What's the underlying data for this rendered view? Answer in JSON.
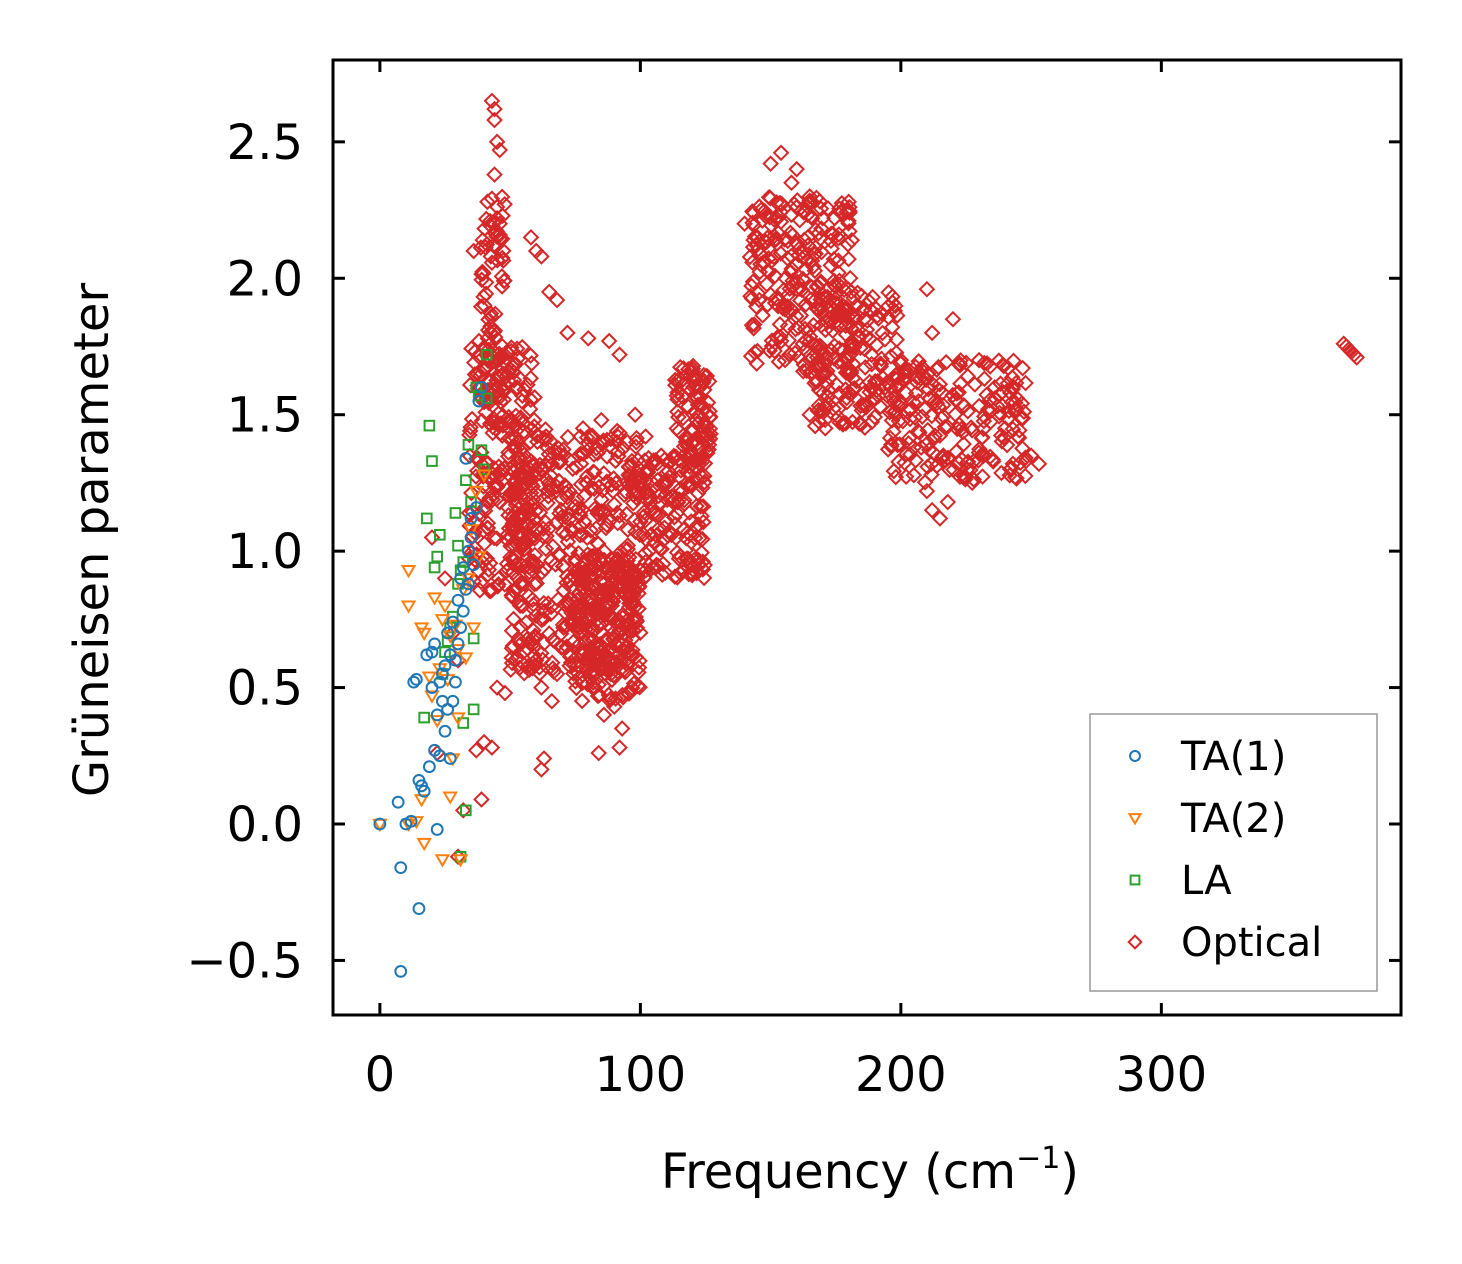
{
  "chart_data": {
    "type": "scatter",
    "title": "",
    "xlabel": "Frequency (cm",
    "xlabel_sup": "−1",
    "xlabel_tail": ")",
    "ylabel": "Grüneisen parameter",
    "xlim": [
      -18,
      392
    ],
    "ylim": [
      -0.7,
      2.8
    ],
    "xticks": [
      0,
      100,
      200,
      300
    ],
    "xtick_labels": [
      "0",
      "100",
      "200",
      "300"
    ],
    "yticks": [
      -0.5,
      0.0,
      0.5,
      1.0,
      1.5,
      2.0,
      2.5
    ],
    "ytick_labels": [
      "−0.5",
      "0.0",
      "0.5",
      "1.0",
      "1.5",
      "2.0",
      "2.5"
    ],
    "legend_position": "lower-right",
    "series": [
      {
        "name": "TA(1)",
        "marker": "circle",
        "color": "#1f77b4",
        "points": [
          [
            0,
            0.0
          ],
          [
            7,
            0.08
          ],
          [
            8,
            -0.16
          ],
          [
            8,
            -0.54
          ],
          [
            10,
            0.0
          ],
          [
            12,
            0.01
          ],
          [
            13,
            0.52
          ],
          [
            14,
            0.53
          ],
          [
            15,
            0.16
          ],
          [
            15,
            -0.31
          ],
          [
            16,
            0.14
          ],
          [
            17,
            0.12
          ],
          [
            18,
            0.62
          ],
          [
            19,
            0.21
          ],
          [
            20,
            0.63
          ],
          [
            20,
            0.5
          ],
          [
            21,
            0.27
          ],
          [
            21,
            0.66
          ],
          [
            22,
            0.4
          ],
          [
            22,
            -0.02
          ],
          [
            23,
            0.25
          ],
          [
            23,
            0.52
          ],
          [
            24,
            0.45
          ],
          [
            24,
            0.55
          ],
          [
            25,
            0.58
          ],
          [
            25,
            0.34
          ],
          [
            26,
            0.7
          ],
          [
            26,
            0.42
          ],
          [
            27,
            0.62
          ],
          [
            27,
            0.24
          ],
          [
            28,
            0.74
          ],
          [
            28,
            0.45
          ],
          [
            29,
            0.6
          ],
          [
            29,
            0.52
          ],
          [
            30,
            0.82
          ],
          [
            30,
            0.66
          ],
          [
            31,
            0.72
          ],
          [
            31,
            0.9
          ],
          [
            32,
            0.94
          ],
          [
            32,
            0.78
          ],
          [
            33,
            1.34
          ],
          [
            33,
            0.86
          ],
          [
            34,
            1.0
          ],
          [
            34,
            0.88
          ],
          [
            35,
            1.05
          ],
          [
            35,
            1.12
          ],
          [
            36,
            0.95
          ],
          [
            37,
            1.16
          ],
          [
            38,
            1.55
          ],
          [
            39,
            1.6
          ]
        ]
      },
      {
        "name": "TA(2)",
        "marker": "triangle-down",
        "color": "#ff7f0e",
        "points": [
          [
            0,
            0.0
          ],
          [
            11,
            0.0
          ],
          [
            11,
            0.93
          ],
          [
            11,
            0.8
          ],
          [
            14,
            0.01
          ],
          [
            16,
            0.09
          ],
          [
            16,
            0.72
          ],
          [
            17,
            0.7
          ],
          [
            17,
            -0.07
          ],
          [
            19,
            0.54
          ],
          [
            20,
            0.47
          ],
          [
            21,
            0.83
          ],
          [
            22,
            0.38
          ],
          [
            23,
            0.57
          ],
          [
            24,
            0.75
          ],
          [
            24,
            -0.13
          ],
          [
            25,
            0.8
          ],
          [
            26,
            0.53
          ],
          [
            27,
            0.1
          ],
          [
            27,
            0.69
          ],
          [
            28,
            0.24
          ],
          [
            29,
            0.73
          ],
          [
            30,
            0.64
          ],
          [
            30,
            0.39
          ],
          [
            31,
            -0.13
          ],
          [
            32,
            0.86
          ],
          [
            33,
            0.61
          ],
          [
            34,
            0.9
          ],
          [
            35,
            1.08
          ],
          [
            36,
            0.72
          ],
          [
            37,
            1.22
          ],
          [
            38,
            0.98
          ],
          [
            40,
            1.28
          ]
        ]
      },
      {
        "name": "LA",
        "marker": "square",
        "color": "#2ca02c",
        "points": [
          [
            17,
            0.39
          ],
          [
            18,
            1.12
          ],
          [
            19,
            1.46
          ],
          [
            20,
            1.33
          ],
          [
            21,
            0.94
          ],
          [
            22,
            0.98
          ],
          [
            23,
            1.06
          ],
          [
            24,
            0.55
          ],
          [
            25,
            0.63
          ],
          [
            26,
            0.67
          ],
          [
            27,
            0.72
          ],
          [
            28,
            0.76
          ],
          [
            29,
            1.14
          ],
          [
            30,
            0.88
          ],
          [
            30,
            1.02
          ],
          [
            31,
            0.93
          ],
          [
            31,
            -0.12
          ],
          [
            32,
            0.37
          ],
          [
            32,
            0.96
          ],
          [
            33,
            0.05
          ],
          [
            33,
            1.26
          ],
          [
            34,
            1.39
          ],
          [
            35,
            1.18
          ],
          [
            36,
            0.68
          ],
          [
            36,
            0.42
          ],
          [
            37,
            1.6
          ],
          [
            38,
            1.57
          ],
          [
            39,
            1.37
          ],
          [
            40,
            1.3
          ],
          [
            41,
            1.72
          ],
          [
            41,
            1.56
          ]
        ]
      },
      {
        "name": "Optical",
        "marker": "diamond",
        "color": "#d62728",
        "clusters": [
          {
            "x_range": [
              34,
              60
            ],
            "y_range": [
              0.85,
              1.75
            ],
            "count": 240
          },
          {
            "x_range": [
              38,
              48
            ],
            "y_range": [
              1.45,
              2.3
            ],
            "count": 90
          },
          {
            "x_range": [
              50,
              100
            ],
            "y_range": [
              0.55,
              1.45
            ],
            "count": 500
          },
          {
            "x_range": [
              75,
              100
            ],
            "y_range": [
              0.45,
              1.0
            ],
            "count": 180
          },
          {
            "x_range": [
              100,
              125
            ],
            "y_range": [
              0.9,
              1.35
            ],
            "count": 170
          },
          {
            "x_range": [
              113,
              127
            ],
            "y_range": [
              1.3,
              1.68
            ],
            "count": 90
          },
          {
            "x_range": [
              142,
              182
            ],
            "y_range": [
              1.65,
              2.3
            ],
            "count": 260
          },
          {
            "x_range": [
              165,
              200
            ],
            "y_range": [
              1.45,
              1.95
            ],
            "count": 170
          },
          {
            "x_range": [
              195,
              248
            ],
            "y_range": [
              1.25,
              1.7
            ],
            "count": 210
          }
        ],
        "points": [
          [
            43,
            2.65
          ],
          [
            44,
            2.62
          ],
          [
            44,
            2.58
          ],
          [
            45,
            2.5
          ],
          [
            46,
            2.47
          ],
          [
            44,
            2.38
          ],
          [
            45,
            2.22
          ],
          [
            46,
            2.2
          ],
          [
            36,
            2.1
          ],
          [
            58,
            2.15
          ],
          [
            60,
            2.1
          ],
          [
            62,
            2.08
          ],
          [
            65,
            1.95
          ],
          [
            68,
            1.92
          ],
          [
            72,
            1.8
          ],
          [
            80,
            1.78
          ],
          [
            88,
            1.77
          ],
          [
            92,
            1.72
          ],
          [
            78,
            1.45
          ],
          [
            85,
            1.48
          ],
          [
            95,
            1.4
          ],
          [
            98,
            1.5
          ],
          [
            102,
            1.42
          ],
          [
            108,
            1.35
          ],
          [
            112,
            1.2
          ],
          [
            45,
            0.5
          ],
          [
            48,
            0.48
          ],
          [
            43,
            0.28
          ],
          [
            37,
            0.27
          ],
          [
            40,
            0.3
          ],
          [
            39,
            0.09
          ],
          [
            32,
            0.05
          ],
          [
            63,
            0.24
          ],
          [
            62,
            0.2
          ],
          [
            62,
            0.5
          ],
          [
            66,
            0.45
          ],
          [
            68,
            0.55
          ],
          [
            84,
            0.26
          ],
          [
            92,
            0.28
          ],
          [
            93,
            0.35
          ],
          [
            86,
            0.4
          ],
          [
            90,
            0.43
          ],
          [
            95,
            0.48
          ],
          [
            60,
            0.6
          ],
          [
            70,
            0.65
          ],
          [
            30,
            0.6
          ],
          [
            20,
            1.05
          ],
          [
            25,
            0.9
          ],
          [
            28,
            0.7
          ],
          [
            22,
            0.26
          ],
          [
            30,
            -0.12
          ],
          [
            154,
            2.46
          ],
          [
            150,
            2.42
          ],
          [
            160,
            2.4
          ],
          [
            165,
            2.3
          ],
          [
            170,
            2.22
          ],
          [
            158,
            2.35
          ],
          [
            140,
            2.2
          ],
          [
            145,
            2.15
          ],
          [
            168,
            1.75
          ],
          [
            170,
            1.65
          ],
          [
            165,
            1.5
          ],
          [
            171,
            1.45
          ],
          [
            178,
            1.47
          ],
          [
            188,
            1.62
          ],
          [
            186,
            1.58
          ],
          [
            205,
            1.38
          ],
          [
            210,
            1.22
          ],
          [
            212,
            1.15
          ],
          [
            215,
            1.12
          ],
          [
            218,
            1.18
          ],
          [
            212,
            1.8
          ],
          [
            210,
            1.96
          ],
          [
            220,
            1.85
          ],
          [
            230,
            1.7
          ],
          [
            236,
            1.6
          ],
          [
            240,
            1.45
          ],
          [
            245,
            1.42
          ],
          [
            250,
            1.35
          ],
          [
            253,
            1.32
          ],
          [
            248,
            1.33
          ],
          [
            243,
            1.32
          ],
          [
            242,
            1.3
          ],
          [
            200,
            1.7
          ],
          [
            196,
            1.6
          ],
          [
            372,
            1.74
          ],
          [
            373,
            1.73
          ],
          [
            374,
            1.72
          ],
          [
            371,
            1.75
          ],
          [
            370,
            1.76
          ],
          [
            375,
            1.71
          ]
        ]
      }
    ]
  }
}
